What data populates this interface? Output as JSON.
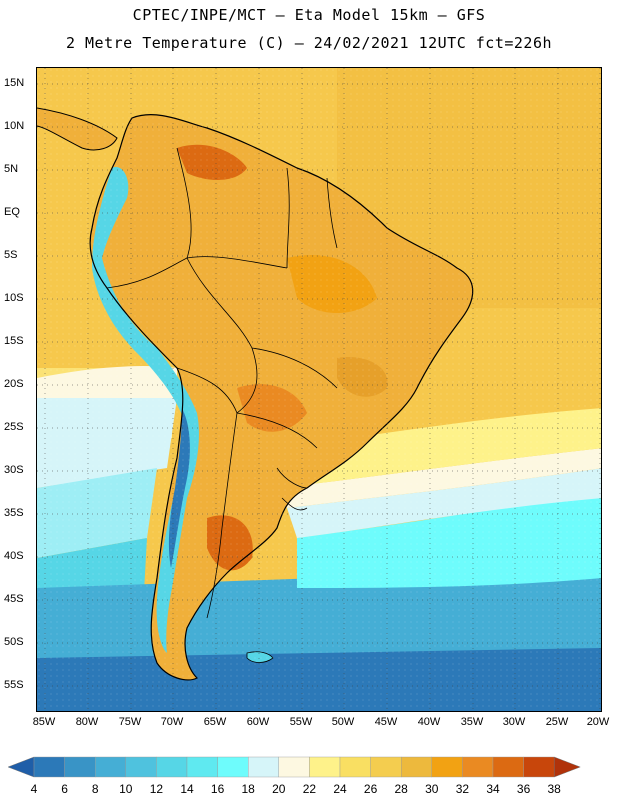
{
  "header": {
    "title_line1": "CPTEC/INPE/MCT –  Eta Model 15km – GFS",
    "title_line2": "2 Metre Temperature (C) – 24/02/2021 12UTC fct=226h"
  },
  "map": {
    "latitude_labels": [
      "15N",
      "10N",
      "5N",
      "EQ",
      "5S",
      "10S",
      "15S",
      "20S",
      "25S",
      "30S",
      "35S",
      "40S",
      "45S",
      "50S",
      "55S"
    ],
    "longitude_labels": [
      "85W",
      "80W",
      "75W",
      "70W",
      "65W",
      "60W",
      "55W",
      "50W",
      "45W",
      "40W",
      "35W",
      "30W",
      "25W",
      "20W"
    ]
  },
  "legend": {
    "values": [
      "4",
      "6",
      "8",
      "10",
      "12",
      "14",
      "16",
      "18",
      "20",
      "22",
      "24",
      "26",
      "28",
      "30",
      "32",
      "34",
      "36",
      "38"
    ],
    "colors": [
      "#1f5ea8",
      "#2c79b8",
      "#3994c6",
      "#45aed5",
      "#4fc2de",
      "#56d6e6",
      "#5fe9f0",
      "#6efcfc",
      "#d6f5f9",
      "#fdf8e1",
      "#fef28a",
      "#f9df62",
      "#f4cd4f",
      "#edb93d",
      "#f2a213",
      "#ea8a22",
      "#dc6a12",
      "#c8460b",
      "#b0320a"
    ]
  }
}
